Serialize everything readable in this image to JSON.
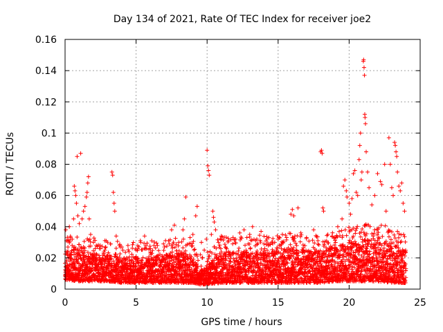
{
  "chart_data": {
    "type": "scatter",
    "title": "Day 134 of 2021, Rate Of TEC Index for receiver joe2",
    "xlabel": "GPS time / hours",
    "ylabel": "ROTI / TECUs",
    "xlim": [
      0,
      25
    ],
    "ylim": [
      0,
      0.16
    ],
    "x_ticks": [
      0,
      5,
      10,
      15,
      20,
      25
    ],
    "x_tick_labels": [
      "0",
      "5",
      "10",
      "15",
      "20",
      "25"
    ],
    "y_ticks": [
      0,
      0.02,
      0.04,
      0.06,
      0.08,
      0.1,
      0.12,
      0.14,
      0.16
    ],
    "y_tick_labels": [
      "0",
      "0.02",
      "0.04",
      "0.06",
      "0.08",
      "0.1",
      "0.12",
      "0.14",
      "0.16"
    ],
    "grid": true,
    "marker": "plus",
    "color": "#ff0000",
    "series": [
      {
        "name": "ROTI",
        "points": [
          [
            0.05,
            0.038
          ],
          [
            0.1,
            0.031
          ],
          [
            0.2,
            0.027
          ],
          [
            0.3,
            0.04
          ],
          [
            0.4,
            0.033
          ],
          [
            0.5,
            0.028
          ],
          [
            0.6,
            0.045
          ],
          [
            0.65,
            0.066
          ],
          [
            0.7,
            0.063
          ],
          [
            0.75,
            0.06
          ],
          [
            0.8,
            0.055
          ],
          [
            0.85,
            0.085
          ],
          [
            0.9,
            0.047
          ],
          [
            1.0,
            0.042
          ],
          [
            1.1,
            0.087
          ],
          [
            1.2,
            0.045
          ],
          [
            1.3,
            0.05
          ],
          [
            1.4,
            0.053
          ],
          [
            1.5,
            0.059
          ],
          [
            1.55,
            0.062
          ],
          [
            1.6,
            0.068
          ],
          [
            1.65,
            0.072
          ],
          [
            1.7,
            0.045
          ],
          [
            1.8,
            0.035
          ],
          [
            2.0,
            0.03
          ],
          [
            2.2,
            0.028
          ],
          [
            2.5,
            0.026
          ],
          [
            2.8,
            0.025
          ],
          [
            3.0,
            0.03
          ],
          [
            3.2,
            0.029
          ],
          [
            3.3,
            0.075
          ],
          [
            3.35,
            0.073
          ],
          [
            3.4,
            0.062
          ],
          [
            3.45,
            0.055
          ],
          [
            3.5,
            0.05
          ],
          [
            3.6,
            0.034
          ],
          [
            4.0,
            0.027
          ],
          [
            4.5,
            0.024
          ],
          [
            5.0,
            0.025
          ],
          [
            5.3,
            0.031
          ],
          [
            5.6,
            0.034
          ],
          [
            6.0,
            0.026
          ],
          [
            6.5,
            0.028
          ],
          [
            7.0,
            0.027
          ],
          [
            7.5,
            0.038
          ],
          [
            7.7,
            0.041
          ],
          [
            8.0,
            0.03
          ],
          [
            8.3,
            0.038
          ],
          [
            8.4,
            0.045
          ],
          [
            8.5,
            0.059
          ],
          [
            8.8,
            0.033
          ],
          [
            9.0,
            0.035
          ],
          [
            9.2,
            0.047
          ],
          [
            9.3,
            0.053
          ],
          [
            9.6,
            0.03
          ],
          [
            9.8,
            0.025
          ],
          [
            9.95,
            0.032
          ],
          [
            10.0,
            0.089
          ],
          [
            10.05,
            0.079
          ],
          [
            10.1,
            0.076
          ],
          [
            10.15,
            0.073
          ],
          [
            10.3,
            0.035
          ],
          [
            10.4,
            0.05
          ],
          [
            10.45,
            0.046
          ],
          [
            10.5,
            0.043
          ],
          [
            10.6,
            0.038
          ],
          [
            10.8,
            0.03
          ],
          [
            11.0,
            0.034
          ],
          [
            11.3,
            0.027
          ],
          [
            11.5,
            0.031
          ],
          [
            11.8,
            0.029
          ],
          [
            12.0,
            0.032
          ],
          [
            12.3,
            0.036
          ],
          [
            12.6,
            0.038
          ],
          [
            12.8,
            0.033
          ],
          [
            13.0,
            0.035
          ],
          [
            13.2,
            0.04
          ],
          [
            13.5,
            0.032
          ],
          [
            13.8,
            0.037
          ],
          [
            14.0,
            0.029
          ],
          [
            14.3,
            0.028
          ],
          [
            14.6,
            0.03
          ],
          [
            15.0,
            0.032
          ],
          [
            15.3,
            0.035
          ],
          [
            15.6,
            0.033
          ],
          [
            15.9,
            0.048
          ],
          [
            16.0,
            0.051
          ],
          [
            16.1,
            0.047
          ],
          [
            16.4,
            0.052
          ],
          [
            16.6,
            0.036
          ],
          [
            17.0,
            0.033
          ],
          [
            17.5,
            0.038
          ],
          [
            17.8,
            0.031
          ],
          [
            18.0,
            0.088
          ],
          [
            18.05,
            0.089
          ],
          [
            18.1,
            0.087
          ],
          [
            18.15,
            0.052
          ],
          [
            18.2,
            0.05
          ],
          [
            18.5,
            0.035
          ],
          [
            18.8,
            0.034
          ],
          [
            19.0,
            0.033
          ],
          [
            19.2,
            0.04
          ],
          [
            19.5,
            0.045
          ],
          [
            19.6,
            0.066
          ],
          [
            19.7,
            0.07
          ],
          [
            19.8,
            0.063
          ],
          [
            19.85,
            0.059
          ],
          [
            20.0,
            0.055
          ],
          [
            20.1,
            0.048
          ],
          [
            20.2,
            0.058
          ],
          [
            20.3,
            0.074
          ],
          [
            20.4,
            0.076
          ],
          [
            20.5,
            0.062
          ],
          [
            20.6,
            0.06
          ],
          [
            20.7,
            0.083
          ],
          [
            20.75,
            0.092
          ],
          [
            20.8,
            0.1
          ],
          [
            20.85,
            0.07
          ],
          [
            20.9,
            0.075
          ],
          [
            21.0,
            0.146
          ],
          [
            21.02,
            0.147
          ],
          [
            21.05,
            0.142
          ],
          [
            21.08,
            0.137
          ],
          [
            21.1,
            0.112
          ],
          [
            21.12,
            0.11
          ],
          [
            21.15,
            0.106
          ],
          [
            21.2,
            0.088
          ],
          [
            21.3,
            0.075
          ],
          [
            21.4,
            0.065
          ],
          [
            21.6,
            0.054
          ],
          [
            21.8,
            0.06
          ],
          [
            22.0,
            0.074
          ],
          [
            22.2,
            0.069
          ],
          [
            22.3,
            0.067
          ],
          [
            22.5,
            0.08
          ],
          [
            22.6,
            0.05
          ],
          [
            22.8,
            0.097
          ],
          [
            22.9,
            0.08
          ],
          [
            23.0,
            0.065
          ],
          [
            23.1,
            0.06
          ],
          [
            23.2,
            0.094
          ],
          [
            23.25,
            0.092
          ],
          [
            23.3,
            0.088
          ],
          [
            23.35,
            0.085
          ],
          [
            23.4,
            0.075
          ],
          [
            23.5,
            0.066
          ],
          [
            23.6,
            0.063
          ],
          [
            23.7,
            0.068
          ],
          [
            23.8,
            0.055
          ],
          [
            23.9,
            0.05
          ]
        ],
        "dense_band": [
          [
            0,
            0.006,
            0.024
          ],
          [
            1,
            0.005,
            0.026
          ],
          [
            2,
            0.005,
            0.023
          ],
          [
            3,
            0.005,
            0.022
          ],
          [
            4,
            0.004,
            0.02
          ],
          [
            5,
            0.004,
            0.02
          ],
          [
            6,
            0.004,
            0.021
          ],
          [
            7,
            0.004,
            0.022
          ],
          [
            8,
            0.004,
            0.023
          ],
          [
            9,
            0.004,
            0.022
          ],
          [
            9.5,
            0.003,
            0.012
          ],
          [
            10,
            0.003,
            0.015
          ],
          [
            11,
            0.004,
            0.024
          ],
          [
            12,
            0.004,
            0.024
          ],
          [
            13,
            0.004,
            0.024
          ],
          [
            14,
            0.004,
            0.025
          ],
          [
            15,
            0.004,
            0.026
          ],
          [
            16,
            0.004,
            0.026
          ],
          [
            17,
            0.004,
            0.025
          ],
          [
            18,
            0.004,
            0.024
          ],
          [
            19,
            0.005,
            0.027
          ],
          [
            20,
            0.005,
            0.03
          ],
          [
            21,
            0.005,
            0.032
          ],
          [
            22,
            0.005,
            0.032
          ],
          [
            23,
            0.004,
            0.03
          ],
          [
            24,
            0.004,
            0.025
          ]
        ]
      }
    ]
  }
}
